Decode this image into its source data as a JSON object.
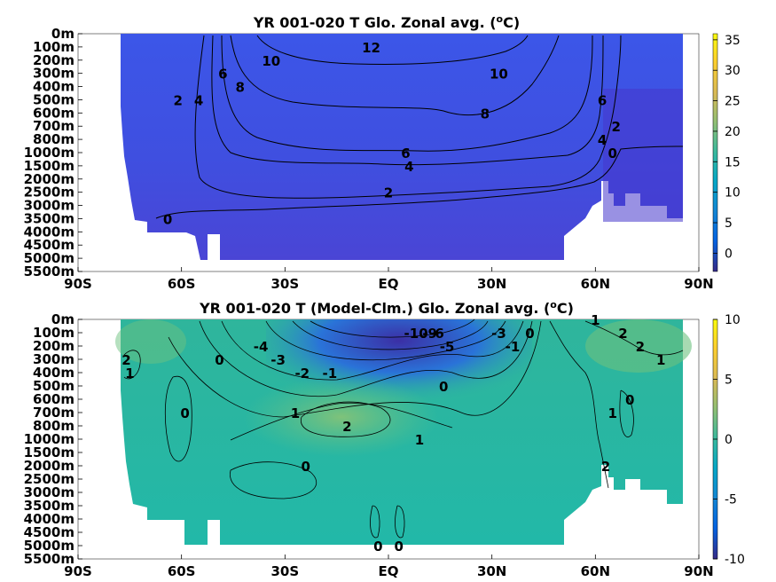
{
  "chart_data": [
    {
      "type": "heatmap",
      "title": "YR 001-020 T Glo. Zonal avg. (",
      "title_sup": "o",
      "title_end": "C)",
      "x_ticks": [
        "90S",
        "60S",
        "30S",
        "EQ",
        "30N",
        "60N",
        "90N"
      ],
      "x_range": [
        -90,
        90
      ],
      "y_ticks": [
        "0m",
        "100m",
        "200m",
        "300m",
        "400m",
        "500m",
        "600m",
        "700m",
        "800m",
        "1000m",
        "1500m",
        "2000m",
        "2500m",
        "3000m",
        "3500m",
        "4000m",
        "4500m",
        "5000m",
        "5500m"
      ],
      "colorbar": {
        "ticks": [
          "35",
          "30",
          "25",
          "20",
          "15",
          "10",
          "5",
          "0"
        ],
        "range": [
          -3,
          36
        ]
      },
      "contours": [
        {
          "label": "12",
          "lat": -5,
          "depth": "100m"
        },
        {
          "label": "10",
          "lat": -34,
          "depth": "200m"
        },
        {
          "label": "10",
          "lat": 32,
          "depth": "300m"
        },
        {
          "label": "8",
          "lat": -43,
          "depth": "400m"
        },
        {
          "label": "8",
          "lat": 28,
          "depth": "600m"
        },
        {
          "label": "6",
          "lat": -48,
          "depth": "300m"
        },
        {
          "label": "6",
          "lat": 5,
          "depth": "1000m"
        },
        {
          "label": "6",
          "lat": 62,
          "depth": "500m"
        },
        {
          "label": "4",
          "lat": -55,
          "depth": "500m"
        },
        {
          "label": "4",
          "lat": 6,
          "depth": "1500m"
        },
        {
          "label": "4",
          "lat": 62,
          "depth": "800m"
        },
        {
          "label": "2",
          "lat": -61,
          "depth": "500m"
        },
        {
          "label": "2",
          "lat": 0,
          "depth": "2500m"
        },
        {
          "label": "2",
          "lat": 66,
          "depth": "700m"
        },
        {
          "label": "0",
          "lat": -64,
          "depth": "3500m"
        },
        {
          "label": "0",
          "lat": 65,
          "depth": "1000m"
        }
      ]
    },
    {
      "type": "heatmap",
      "title": "YR 001-020 T (Model-Clm.) Glo. Zonal avg. (",
      "title_sup": "o",
      "title_end": "C)",
      "x_ticks": [
        "90S",
        "60S",
        "30S",
        "EQ",
        "30N",
        "60N",
        "90N"
      ],
      "x_range": [
        -90,
        90
      ],
      "y_ticks": [
        "0m",
        "100m",
        "200m",
        "300m",
        "400m",
        "500m",
        "600m",
        "700m",
        "800m",
        "1000m",
        "1500m",
        "2000m",
        "2500m",
        "3000m",
        "3500m",
        "4000m",
        "4500m",
        "5000m",
        "5500m"
      ],
      "colorbar": {
        "ticks": [
          "10",
          "5",
          "0",
          "-5",
          "-10"
        ],
        "range": [
          -10,
          10
        ]
      },
      "contours": [
        {
          "label": "-10",
          "lat": 8,
          "depth": "100m"
        },
        {
          "label": "-9",
          "lat": 12,
          "depth": "100m"
        },
        {
          "label": "-6",
          "lat": 14,
          "depth": "100m"
        },
        {
          "label": "-5",
          "lat": 17,
          "depth": "200m"
        },
        {
          "label": "-4",
          "lat": -37,
          "depth": "200m"
        },
        {
          "label": "-3",
          "lat": -32,
          "depth": "300m"
        },
        {
          "label": "-2",
          "lat": -25,
          "depth": "400m"
        },
        {
          "label": "-1",
          "lat": -17,
          "depth": "400m"
        },
        {
          "label": "-1",
          "lat": 36,
          "depth": "200m"
        },
        {
          "label": "-3",
          "lat": 32,
          "depth": "100m"
        },
        {
          "label": "0",
          "lat": -49,
          "depth": "300m"
        },
        {
          "label": "0",
          "lat": -59,
          "depth": "700m"
        },
        {
          "label": "0",
          "lat": 16,
          "depth": "500m"
        },
        {
          "label": "0",
          "lat": -24,
          "depth": "2000m"
        },
        {
          "label": "0",
          "lat": 41,
          "depth": "100m"
        },
        {
          "label": "0",
          "lat": 70,
          "depth": "600m"
        },
        {
          "label": "0",
          "lat": 3,
          "depth": "5000m"
        },
        {
          "label": "0",
          "lat": -3,
          "depth": "5000m"
        },
        {
          "label": "1",
          "lat": -27,
          "depth": "700m"
        },
        {
          "label": "1",
          "lat": 9,
          "depth": "1000m"
        },
        {
          "label": "1",
          "lat": 60,
          "depth": "0m"
        },
        {
          "label": "1",
          "lat": 79,
          "depth": "300m"
        },
        {
          "label": "1",
          "lat": -75,
          "depth": "400m"
        },
        {
          "label": "1",
          "lat": 65,
          "depth": "700m"
        },
        {
          "label": "2",
          "lat": -12,
          "depth": "800m"
        },
        {
          "label": "2",
          "lat": -76,
          "depth": "300m"
        },
        {
          "label": "2",
          "lat": 68,
          "depth": "100m"
        },
        {
          "label": "2",
          "lat": 73,
          "depth": "200m"
        },
        {
          "label": "2",
          "lat": 63,
          "depth": "2000m"
        }
      ]
    }
  ]
}
